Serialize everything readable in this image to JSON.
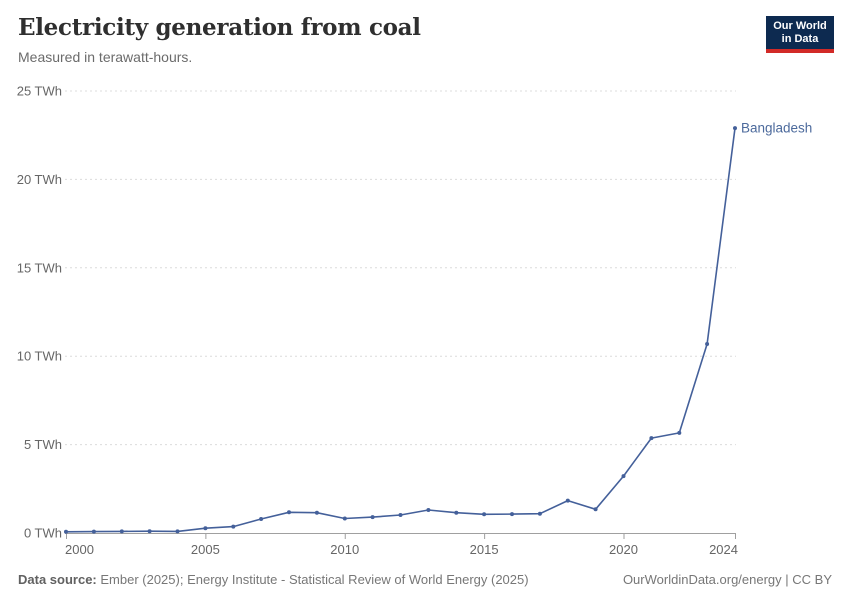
{
  "logo": {
    "line1": "Our World",
    "line2": "in Data",
    "bg_color": "#0d2a50",
    "accent_color": "#d22a27"
  },
  "footer": {
    "source_label": "Data source:",
    "source_text": " Ember (2025); Energy Institute - Statistical Review of World Energy (2025)",
    "credit": "OurWorldinData.org/energy | CC BY"
  },
  "chart_data": {
    "type": "line",
    "title": "Electricity generation from coal",
    "subtitle": "Measured in terawatt-hours.",
    "x": [
      2000,
      2001,
      2002,
      2003,
      2004,
      2005,
      2006,
      2007,
      2008,
      2009,
      2010,
      2011,
      2012,
      2013,
      2014,
      2015,
      2016,
      2017,
      2018,
      2019,
      2020,
      2021,
      2022,
      2023,
      2024
    ],
    "series": [
      {
        "name": "Bangladesh",
        "color": "#44609a",
        "label_color": "#4c6a9c",
        "values": [
          0.07,
          0.08,
          0.09,
          0.1,
          0.09,
          0.27,
          0.36,
          0.79,
          1.17,
          1.15,
          0.82,
          0.9,
          1.02,
          1.3,
          1.15,
          1.06,
          1.07,
          1.09,
          1.83,
          1.34,
          3.22,
          5.37,
          5.66,
          10.69,
          22.9
        ]
      }
    ],
    "xlabel": "",
    "ylabel": "",
    "xlim": [
      2000,
      2024
    ],
    "ylim": [
      0,
      25
    ],
    "x_ticks": [
      2000,
      2005,
      2010,
      2015,
      2020,
      2024
    ],
    "y_ticks": [
      0,
      5,
      10,
      15,
      20,
      25
    ],
    "y_unit": "TWh",
    "y_tick_format": "{v} TWh",
    "grid": "horizontal-dashed",
    "legend_position": "end-of-line-label",
    "colors": {
      "grid": "#dcdcdc",
      "axis": "#a0a0a0",
      "tick": "#9e9e9e",
      "tick_label": "#666666"
    }
  }
}
